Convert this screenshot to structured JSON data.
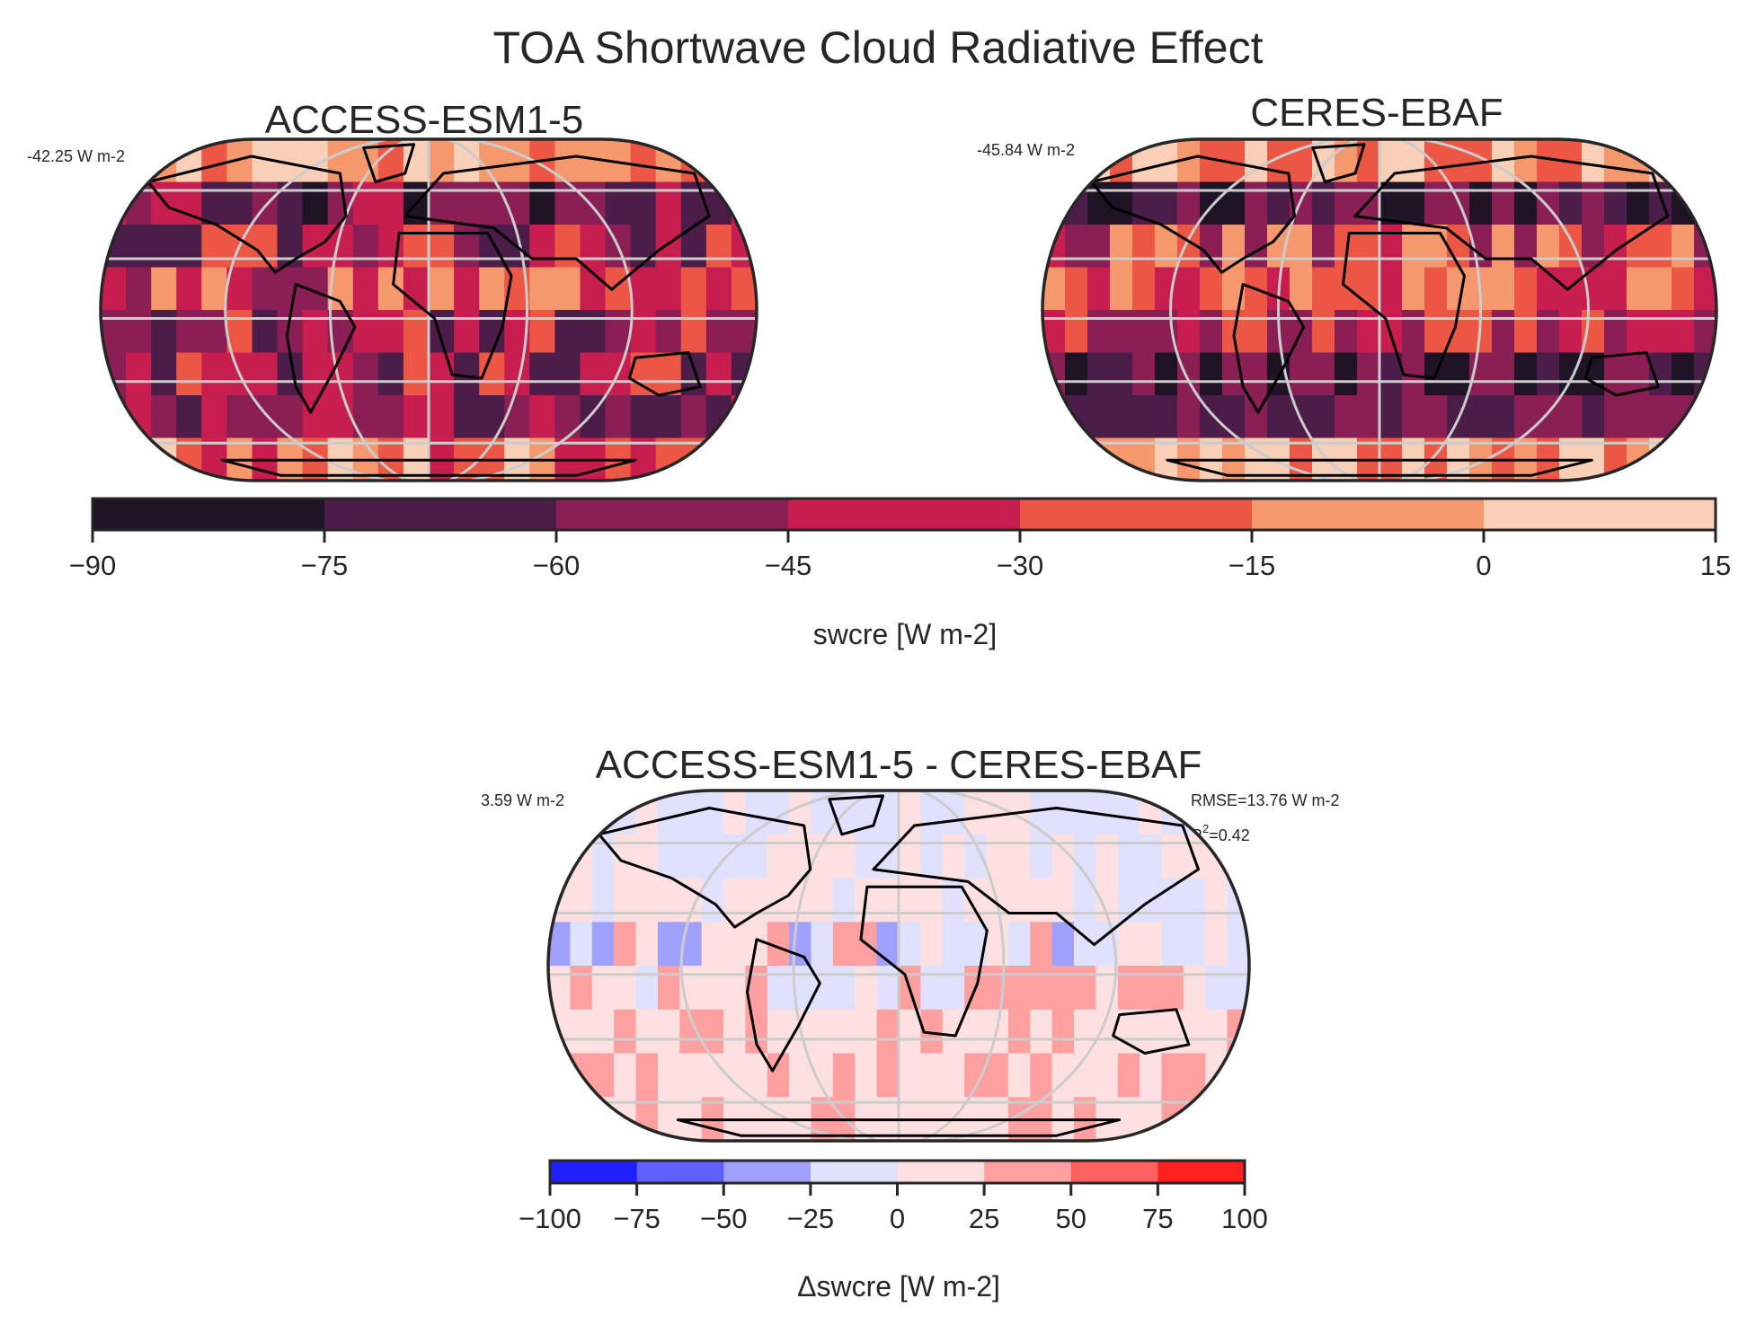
{
  "figure": {
    "title": "TOA Shortwave Cloud Radiative Effect"
  },
  "panels": [
    {
      "id": "model",
      "title": "ACCESS-ESM1-5",
      "mean_label": "-42.25 W m-2"
    },
    {
      "id": "obs",
      "title": "CERES-EBAF",
      "mean_label": "-45.84 W m-2"
    },
    {
      "id": "diff",
      "title": "ACCESS-ESM1-5 - CERES-EBAF",
      "mean_label": "3.59 W m-2",
      "rmse_label": "RMSE=13.76 W m-2",
      "r2_prefix": "R",
      "r2_sup": "2",
      "r2_value": "=0.42"
    }
  ],
  "colorbar_main": {
    "label": "swcre [W m-2]",
    "ticks": [
      -90,
      -75,
      -60,
      -45,
      -30,
      -15,
      0,
      15
    ],
    "tick_labels": [
      "−90",
      "−75",
      "−60",
      "−45",
      "−30",
      "−15",
      "0",
      "15"
    ],
    "colors": [
      "#1f1326",
      "#4b1d48",
      "#8a1f55",
      "#c81e4f",
      "#eb5645",
      "#f5986e",
      "#f8d0b7"
    ]
  },
  "colorbar_diff": {
    "label": "Δswcre [W m-2]",
    "ticks": [
      -100,
      -75,
      -50,
      -25,
      0,
      25,
      50,
      75,
      100
    ],
    "tick_labels": [
      "−100",
      "−75",
      "−50",
      "−25",
      "0",
      "25",
      "50",
      "75",
      "100"
    ],
    "colors": [
      "#2020ff",
      "#6060ff",
      "#a0a0ff",
      "#e0e0ff",
      "#ffe0e0",
      "#ffa0a0",
      "#ff6060",
      "#ff2020"
    ]
  },
  "chart_data": [
    {
      "type": "heatmap",
      "title": "ACCESS-ESM1-5",
      "projection": "Robinson",
      "variable": "swcre",
      "units": "W m-2",
      "global_mean": -42.25,
      "levels": [
        -90,
        -75,
        -60,
        -45,
        -30,
        -15,
        0,
        15
      ],
      "lat_bands": [
        {
          "lat_range": [
            60,
            90
          ],
          "typical_value_range": [
            -30,
            15
          ]
        },
        {
          "lat_range": [
            30,
            60
          ],
          "typical_value_range": [
            -75,
            -30
          ]
        },
        {
          "lat_range": [
            0,
            30
          ],
          "typical_value_range": [
            -60,
            -15
          ]
        },
        {
          "lat_range": [
            -30,
            0
          ],
          "typical_value_range": [
            -60,
            -15
          ]
        },
        {
          "lat_range": [
            -60,
            -30
          ],
          "typical_value_range": [
            -75,
            -30
          ]
        },
        {
          "lat_range": [
            -90,
            -60
          ],
          "typical_value_range": [
            -30,
            15
          ]
        }
      ]
    },
    {
      "type": "heatmap",
      "title": "CERES-EBAF",
      "projection": "Robinson",
      "variable": "swcre",
      "units": "W m-2",
      "global_mean": -45.84,
      "levels": [
        -90,
        -75,
        -60,
        -45,
        -30,
        -15,
        0,
        15
      ],
      "lat_bands": [
        {
          "lat_range": [
            60,
            90
          ],
          "typical_value_range": [
            -45,
            15
          ]
        },
        {
          "lat_range": [
            30,
            60
          ],
          "typical_value_range": [
            -75,
            -45
          ]
        },
        {
          "lat_range": [
            0,
            30
          ],
          "typical_value_range": [
            -60,
            -15
          ]
        },
        {
          "lat_range": [
            -30,
            0
          ],
          "typical_value_range": [
            -45,
            -15
          ]
        },
        {
          "lat_range": [
            -60,
            -30
          ],
          "typical_value_range": [
            -90,
            -60
          ]
        },
        {
          "lat_range": [
            -90,
            -60
          ],
          "typical_value_range": [
            -30,
            15
          ]
        }
      ]
    },
    {
      "type": "heatmap",
      "title": "ACCESS-ESM1-5 - CERES-EBAF",
      "projection": "Robinson",
      "variable": "Δswcre",
      "units": "W m-2",
      "global_mean": 3.59,
      "rmse": 13.76,
      "r2": 0.42,
      "levels": [
        -100,
        -75,
        -50,
        -25,
        0,
        25,
        50,
        75,
        100
      ],
      "lat_bands": [
        {
          "lat_range": [
            60,
            90
          ],
          "typical_value_range": [
            -25,
            25
          ]
        },
        {
          "lat_range": [
            30,
            60
          ],
          "typical_value_range": [
            -25,
            25
          ]
        },
        {
          "lat_range": [
            0,
            30
          ],
          "typical_value_range": [
            -50,
            50
          ]
        },
        {
          "lat_range": [
            -30,
            0
          ],
          "typical_value_range": [
            -50,
            25
          ]
        },
        {
          "lat_range": [
            -60,
            -30
          ],
          "typical_value_range": [
            0,
            50
          ]
        },
        {
          "lat_range": [
            -90,
            -60
          ],
          "typical_value_range": [
            0,
            25
          ]
        }
      ]
    }
  ]
}
